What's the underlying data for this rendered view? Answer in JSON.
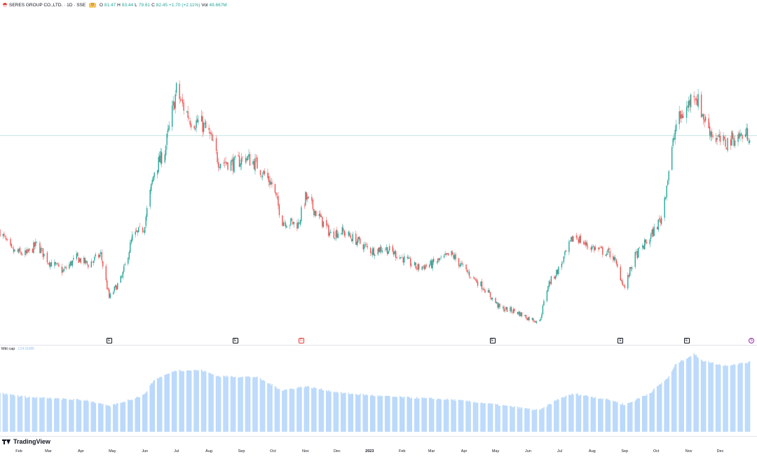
{
  "header": {
    "symbol": "SERES GROUP CO.,LTD. · 1D · SSE",
    "badge": "D",
    "ohlc": [
      {
        "label": "O",
        "value": "81.47"
      },
      {
        "label": "H",
        "value": "83.44"
      },
      {
        "label": "L",
        "value": "79.61"
      },
      {
        "label": "C",
        "value": "82.45"
      },
      {
        "label": "",
        "value": "+1.70 (+2.11%)"
      },
      {
        "label": "Vol",
        "value": "49.667M"
      }
    ]
  },
  "subchart": {
    "title": "Mkt cap",
    "value": "124.508B"
  },
  "footer": {
    "brand": "TradingView"
  },
  "colors": {
    "up": "#26a69a",
    "down": "#ef5350",
    "bars": "#bbd9fb",
    "last_price_line": "#b2dfdb"
  },
  "events": [
    {
      "symbol": "E",
      "kind": "earnings",
      "date": "2022-04-28"
    },
    {
      "symbol": "E",
      "kind": "earnings",
      "date": "2022-08-26"
    },
    {
      "symbol": "D",
      "kind": "dividend",
      "date": "2022-10-28"
    },
    {
      "symbol": "E",
      "kind": "earnings",
      "date": "2023-04-28"
    },
    {
      "symbol": "E",
      "kind": "earnings",
      "date": "2023-08-28"
    },
    {
      "symbol": "E",
      "kind": "earnings",
      "date": "2023-10-30"
    },
    {
      "symbol": "S",
      "kind": "split",
      "date": "2024-01-02"
    }
  ],
  "chart_data": {
    "type": "candlestick",
    "x_range": [
      "2022-01-14",
      "2024-01-05"
    ],
    "y_range": [
      20,
      120
    ],
    "last_close": 82.45,
    "time_axis": [
      {
        "label": "Feb",
        "date": "2022-02-01",
        "year": false
      },
      {
        "label": "Mar",
        "date": "2022-03-01",
        "year": false
      },
      {
        "label": "Apr",
        "date": "2022-04-01",
        "year": false
      },
      {
        "label": "May",
        "date": "2022-05-01",
        "year": false
      },
      {
        "label": "Jun",
        "date": "2022-06-01",
        "year": false
      },
      {
        "label": "Jul",
        "date": "2022-07-01",
        "year": false
      },
      {
        "label": "Aug",
        "date": "2022-08-01",
        "year": false
      },
      {
        "label": "Sep",
        "date": "2022-09-01",
        "year": false
      },
      {
        "label": "Oct",
        "date": "2022-10-01",
        "year": false
      },
      {
        "label": "Nov",
        "date": "2022-11-01",
        "year": false
      },
      {
        "label": "Dec",
        "date": "2022-12-01",
        "year": false
      },
      {
        "label": "2023",
        "date": "2023-01-01",
        "year": true
      },
      {
        "label": "Feb",
        "date": "2023-02-01",
        "year": false
      },
      {
        "label": "Mar",
        "date": "2023-03-01",
        "year": false
      },
      {
        "label": "Apr",
        "date": "2023-04-01",
        "year": false
      },
      {
        "label": "May",
        "date": "2023-05-01",
        "year": false
      },
      {
        "label": "Jun",
        "date": "2023-06-01",
        "year": false
      },
      {
        "label": "Jul",
        "date": "2023-07-01",
        "year": false
      },
      {
        "label": "Aug",
        "date": "2023-08-01",
        "year": false
      },
      {
        "label": "Sep",
        "date": "2023-09-01",
        "year": false
      },
      {
        "label": "Oct",
        "date": "2023-10-01",
        "year": false
      },
      {
        "label": "Nov",
        "date": "2023-11-01",
        "year": false
      },
      {
        "label": "Dec",
        "date": "2023-12-01",
        "year": false
      }
    ],
    "price_path": [
      [
        "2022-01-14",
        54
      ],
      [
        "2022-01-25",
        48
      ],
      [
        "2022-02-08",
        47
      ],
      [
        "2022-02-18",
        50
      ],
      [
        "2022-03-01",
        45
      ],
      [
        "2022-03-15",
        42
      ],
      [
        "2022-03-28",
        46
      ],
      [
        "2022-04-08",
        44
      ],
      [
        "2022-04-20",
        47
      ],
      [
        "2022-04-28",
        34
      ],
      [
        "2022-05-10",
        40
      ],
      [
        "2022-05-20",
        52
      ],
      [
        "2022-05-31",
        55
      ],
      [
        "2022-06-10",
        72
      ],
      [
        "2022-06-20",
        78
      ],
      [
        "2022-07-01",
        96
      ],
      [
        "2022-07-06",
        92
      ],
      [
        "2022-07-15",
        87
      ],
      [
        "2022-07-25",
        86
      ],
      [
        "2022-08-01",
        83
      ],
      [
        "2022-08-10",
        75
      ],
      [
        "2022-08-25",
        74
      ],
      [
        "2022-09-05",
        76
      ],
      [
        "2022-09-15",
        74
      ],
      [
        "2022-09-30",
        68
      ],
      [
        "2022-10-10",
        57
      ],
      [
        "2022-10-25",
        56
      ],
      [
        "2022-11-01",
        64
      ],
      [
        "2022-11-10",
        60
      ],
      [
        "2022-11-25",
        53
      ],
      [
        "2022-12-05",
        54
      ],
      [
        "2022-12-20",
        51
      ],
      [
        "2023-01-03",
        48
      ],
      [
        "2023-01-15",
        49
      ],
      [
        "2023-02-01",
        46
      ],
      [
        "2023-02-15",
        43
      ],
      [
        "2023-03-01",
        44
      ],
      [
        "2023-03-20",
        47
      ],
      [
        "2023-04-03",
        42
      ],
      [
        "2023-04-20",
        37
      ],
      [
        "2023-05-05",
        31
      ],
      [
        "2023-05-20",
        30
      ],
      [
        "2023-06-01",
        28
      ],
      [
        "2023-06-12",
        27
      ],
      [
        "2023-06-20",
        38
      ],
      [
        "2023-07-01",
        43
      ],
      [
        "2023-07-15",
        53
      ],
      [
        "2023-07-25",
        50
      ],
      [
        "2023-08-10",
        48
      ],
      [
        "2023-08-20",
        47
      ],
      [
        "2023-09-01",
        37
      ],
      [
        "2023-09-10",
        46
      ],
      [
        "2023-09-25",
        52
      ],
      [
        "2023-10-06",
        58
      ],
      [
        "2023-10-13",
        72
      ],
      [
        "2023-10-20",
        86
      ],
      [
        "2023-10-31",
        91
      ],
      [
        "2023-11-06",
        96
      ],
      [
        "2023-11-15",
        88
      ],
      [
        "2023-11-25",
        82
      ],
      [
        "2023-12-05",
        80
      ],
      [
        "2023-12-15",
        82
      ],
      [
        "2023-12-29",
        83
      ]
    ],
    "mkt_cap": {
      "name": "Mkt cap",
      "last": "124.508B",
      "path": [
        [
          "2022-01-14",
          58
        ],
        [
          "2022-02-08",
          52
        ],
        [
          "2022-04-08",
          47
        ],
        [
          "2022-04-28",
          38
        ],
        [
          "2022-05-31",
          55
        ],
        [
          "2022-06-10",
          78
        ],
        [
          "2022-07-01",
          92
        ],
        [
          "2022-07-25",
          92
        ],
        [
          "2022-08-10",
          83
        ],
        [
          "2022-09-15",
          82
        ],
        [
          "2022-10-10",
          62
        ],
        [
          "2022-11-01",
          68
        ],
        [
          "2022-12-05",
          58
        ],
        [
          "2023-01-15",
          53
        ],
        [
          "2023-03-20",
          48
        ],
        [
          "2023-04-20",
          43
        ],
        [
          "2023-06-12",
          32
        ],
        [
          "2023-07-01",
          50
        ],
        [
          "2023-07-15",
          57
        ],
        [
          "2023-08-20",
          47
        ],
        [
          "2023-09-01",
          40
        ],
        [
          "2023-09-25",
          58
        ],
        [
          "2023-10-13",
          82
        ],
        [
          "2023-10-20",
          102
        ],
        [
          "2023-11-06",
          116
        ],
        [
          "2023-11-15",
          106
        ],
        [
          "2023-12-05",
          99
        ],
        [
          "2023-12-29",
          104
        ]
      ]
    }
  }
}
